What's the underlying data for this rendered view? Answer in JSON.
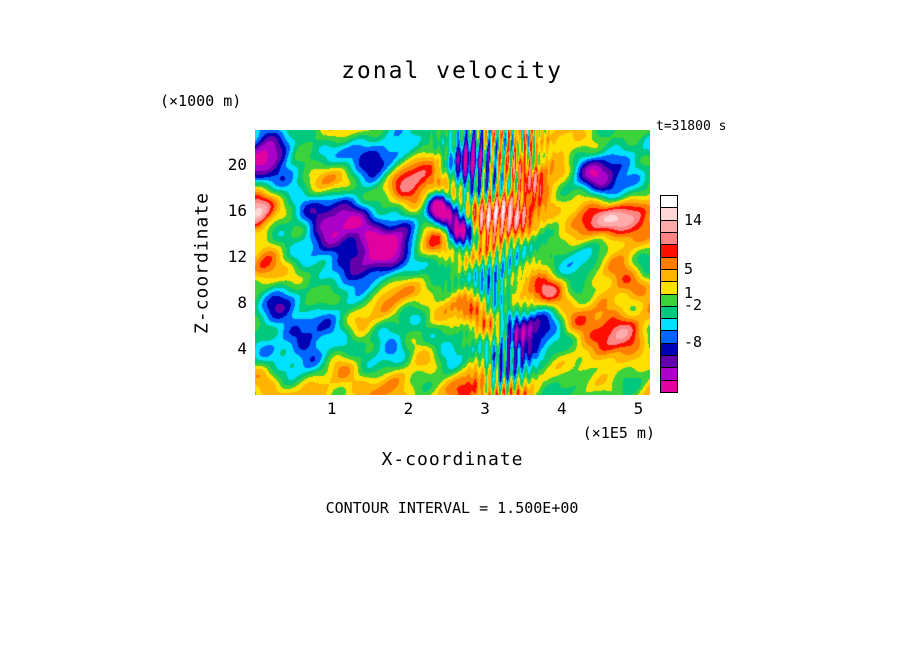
{
  "title": "zonal velocity",
  "timestamp": "t=31800 s",
  "footer": "CONTOUR INTERVAL = 1.500E+00",
  "y_axis": {
    "label": "Z-coordinate",
    "unit": "(×1000 m)"
  },
  "x_axis": {
    "label": "X-coordinate",
    "unit": "(×1E5 m)"
  },
  "chart_data": {
    "type": "heatmap",
    "title": "zonal velocity",
    "xlabel": "X-coordinate",
    "x_unit": "(×1E5 m)",
    "ylabel": "Z-coordinate",
    "y_unit": "(×1000 m)",
    "time_label": "t=31800 s",
    "contour_interval": 1.5,
    "x_ticks": [
      1,
      2,
      3,
      4,
      5
    ],
    "y_ticks": [
      4,
      8,
      12,
      16,
      20
    ],
    "x_range": [
      0,
      5.15
    ],
    "y_range": [
      0,
      23
    ],
    "legend_position": "right",
    "colorbar": {
      "segments_top_to_bottom": [
        "#ffffff",
        "#ffd7d7",
        "#ffabab",
        "#ff8585",
        "#ff0f00",
        "#ff7d00",
        "#ffb400",
        "#ffe100",
        "#3cd23c",
        "#00c87d",
        "#00e1ff",
        "#0064ff",
        "#0000b4",
        "#6400aa",
        "#aa00c8",
        "#e100a0"
      ],
      "labels": [
        {
          "after_segment": 2,
          "text": "14"
        },
        {
          "after_segment": 6,
          "text": "5"
        },
        {
          "after_segment": 8,
          "text": "1"
        },
        {
          "after_segment": 9,
          "text": "-2"
        },
        {
          "after_segment": 12,
          "text": "-8"
        }
      ]
    },
    "value_bands": {
      "thresholds_desc": [
        13,
        11,
        9.5,
        8,
        6.5,
        5,
        3.5,
        2,
        0.5,
        -1,
        -2.5,
        -4,
        -5.5,
        -7,
        -8.5,
        -10
      ],
      "colors_high_to_low": [
        "#ffffff",
        "#ffd7d7",
        "#ffabab",
        "#ff8585",
        "#ff0f00",
        "#ff7d00",
        "#ffb400",
        "#ffe100",
        "#3cd23c",
        "#00c87d",
        "#00e1ff",
        "#0064ff",
        "#0000b4",
        "#6400aa",
        "#aa00c8",
        "#e100a0",
        "#e100a0"
      ]
    },
    "field_model": {
      "base": 2.2,
      "waves": [
        {
          "amp": 2.3,
          "fx1": 2.6,
          "fz1": 0.4,
          "p1": 0.8,
          "fx2": 0.5,
          "fz2": 2.2,
          "p2": 2.1
        },
        {
          "amp": 1.9,
          "fx1": 4.7,
          "fz1": -0.8,
          "p1": 2.9,
          "fx2": 1.1,
          "fz2": 3.6,
          "p2": 0.4
        },
        {
          "amp": 1.4,
          "fx1": 7.3,
          "fz1": 1.5,
          "p1": 5.0,
          "fx2": -1.8,
          "fz2": 5.2,
          "p2": 1.3
        },
        {
          "amp": 0.9,
          "fx1": 11.0,
          "fz1": 2.2,
          "p1": 1.0,
          "fx2": 2.5,
          "fz2": 8.0,
          "p2": 4.2
        }
      ],
      "features": [
        {
          "x": 0.3,
          "z": 0.45,
          "sx": 0.1,
          "sz": 0.13,
          "a": -10.5
        },
        {
          "x": 0.17,
          "z": 0.36,
          "sx": 0.06,
          "sz": 0.09,
          "a": -5
        },
        {
          "x": 0.03,
          "z": 0.12,
          "sx": 0.05,
          "sz": 0.08,
          "a": -9.5
        },
        {
          "x": 0.28,
          "z": 0.09,
          "sx": 0.07,
          "sz": 0.06,
          "a": -8
        },
        {
          "x": 0.55,
          "z": 0.1,
          "sx": 0.035,
          "sz": 0.09,
          "a": -8.5
        },
        {
          "x": 0.64,
          "z": 0.05,
          "sx": 0.03,
          "sz": 0.05,
          "a": -6
        },
        {
          "x": 0.88,
          "z": 0.17,
          "sx": 0.055,
          "sz": 0.07,
          "a": -10
        },
        {
          "x": 0.52,
          "z": 0.37,
          "sx": 0.028,
          "sz": 0.05,
          "a": -13
        },
        {
          "x": 0.465,
          "z": 0.29,
          "sx": 0.022,
          "sz": 0.04,
          "a": -12
        },
        {
          "x": 0.12,
          "z": 0.84,
          "sx": 0.07,
          "sz": 0.09,
          "a": -6
        },
        {
          "x": 0.35,
          "z": 0.78,
          "sx": 0.05,
          "sz": 0.06,
          "a": -4
        },
        {
          "x": 0.5,
          "z": 0.86,
          "sx": 0.04,
          "sz": 0.07,
          "a": -5.5
        },
        {
          "x": 0.68,
          "z": 0.76,
          "sx": 0.065,
          "sz": 0.09,
          "a": -7
        },
        {
          "x": 0.8,
          "z": 0.5,
          "sx": 0.05,
          "sz": 0.07,
          "a": -5
        },
        {
          "x": 0.6,
          "z": 0.55,
          "sx": 0.04,
          "sz": 0.05,
          "a": -4.5
        },
        {
          "x": 0.04,
          "z": 0.65,
          "sx": 0.04,
          "sz": 0.07,
          "a": -5
        },
        {
          "x": 0.01,
          "z": 0.3,
          "sx": 0.028,
          "sz": 0.055,
          "a": 7
        },
        {
          "x": 0.02,
          "z": 0.52,
          "sx": 0.028,
          "sz": 0.05,
          "a": 6.5
        },
        {
          "x": 0.2,
          "z": 0.2,
          "sx": 0.05,
          "sz": 0.05,
          "a": 5
        },
        {
          "x": 0.4,
          "z": 0.22,
          "sx": 0.05,
          "sz": 0.06,
          "a": 6
        },
        {
          "x": 0.44,
          "z": 0.43,
          "sx": 0.04,
          "sz": 0.05,
          "a": 7
        },
        {
          "x": 0.58,
          "z": 0.33,
          "sx": 0.04,
          "sz": 0.05,
          "a": 7.5
        },
        {
          "x": 0.7,
          "z": 0.3,
          "sx": 0.05,
          "sz": 0.06,
          "a": 6
        },
        {
          "x": 0.83,
          "z": 0.35,
          "sx": 0.04,
          "sz": 0.05,
          "a": 6.5
        },
        {
          "x": 0.92,
          "z": 0.33,
          "sx": 0.04,
          "sz": 0.05,
          "a": 7
        },
        {
          "x": 0.35,
          "z": 0.6,
          "sx": 0.06,
          "sz": 0.06,
          "a": 5
        },
        {
          "x": 0.55,
          "z": 0.68,
          "sx": 0.05,
          "sz": 0.06,
          "a": 6
        },
        {
          "x": 0.75,
          "z": 0.6,
          "sx": 0.04,
          "sz": 0.05,
          "a": 5
        },
        {
          "x": 0.9,
          "z": 0.75,
          "sx": 0.06,
          "sz": 0.08,
          "a": 4
        },
        {
          "x": 0.25,
          "z": 0.96,
          "sx": 0.08,
          "sz": 0.06,
          "a": 4
        },
        {
          "x": 0.65,
          "z": 0.15,
          "sx": 0.04,
          "sz": 0.05,
          "a": 5.5
        },
        {
          "x": 0.66,
          "z": 0.03,
          "sx": 0.05,
          "sz": 0.05,
          "a": 5
        },
        {
          "x": 0.53,
          "z": 1.0,
          "sx": 0.04,
          "sz": 0.05,
          "a": 6
        },
        {
          "x": 0.93,
          "z": 0.55,
          "sx": 0.04,
          "sz": 0.06,
          "a": 5.5
        }
      ],
      "streaks": [
        {
          "cx": 0.6,
          "width": 0.09,
          "freq": 50,
          "shear": 14,
          "phase": 0.0,
          "zc": 0.0,
          "zd": 0.5,
          "fan": 0.35,
          "amp": 5.5
        },
        {
          "cx": 0.685,
          "width": 0.04,
          "freq": 70,
          "shear": 8,
          "phase": 1.2,
          "zc": 0.0,
          "zd": 0.22,
          "fan": 0.2,
          "amp": 4.5
        },
        {
          "cx": 0.63,
          "width": 0.055,
          "freq": 55,
          "shear": 6,
          "phase": 2.0,
          "zc": 0.95,
          "zd": 0.3,
          "fan": 0.0,
          "amp": 4.0
        }
      ]
    }
  }
}
